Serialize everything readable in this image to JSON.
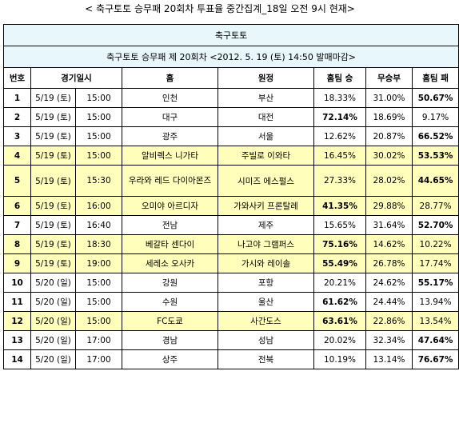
{
  "caption": "< 축구토토 승무패 20회차 투표율 중간집계_18일 오전 9시 현재>",
  "table_title": "축구토토",
  "table_subtitle": "축구토토 승무패 제 20회차 <2012. 5. 19 (토) 14:50 발매마감>",
  "headers": [
    "번호",
    "경기일시",
    "홈",
    "원정",
    "홈팀 승",
    "무승부",
    "홈팀 패"
  ],
  "rows": [
    {
      "no": "1",
      "date": "5/19 (토)",
      "time": "15:00",
      "home": "인천",
      "away": "부산",
      "win": "18.33%",
      "draw": "31.00%",
      "lose": "50.67%",
      "bold": "lose",
      "yellow": false
    },
    {
      "no": "2",
      "date": "5/19 (토)",
      "time": "15:00",
      "home": "대구",
      "away": "대전",
      "win": "72.14%",
      "draw": "18.69%",
      "lose": "9.17%",
      "bold": "win",
      "yellow": false
    },
    {
      "no": "3",
      "date": "5/19 (토)",
      "time": "15:00",
      "home": "광주",
      "away": "서울",
      "win": "12.62%",
      "draw": "20.87%",
      "lose": "66.52%",
      "bold": "lose",
      "yellow": false
    },
    {
      "no": "4",
      "date": "5/19 (토)",
      "time": "15:00",
      "home": "알비렉스 니가타",
      "away": "주빌로 이와타",
      "win": "16.45%",
      "draw": "30.02%",
      "lose": "53.53%",
      "bold": "lose",
      "yellow": true
    },
    {
      "no": "5",
      "date": "5/19 (토)",
      "time": "15:30",
      "home": "우라와 레드 다이아몬즈",
      "away": "시미즈 에스펄스",
      "win": "27.33%",
      "draw": "28.02%",
      "lose": "44.65%",
      "bold": "lose",
      "yellow": true
    },
    {
      "no": "6",
      "date": "5/19 (토)",
      "time": "16:00",
      "home": "오미야 아르디자",
      "away": "가와사키 프론탈레",
      "win": "41.35%",
      "draw": "29.88%",
      "lose": "28.77%",
      "bold": "win",
      "yellow": true
    },
    {
      "no": "7",
      "date": "5/19 (토)",
      "time": "16:40",
      "home": "전남",
      "away": "제주",
      "win": "15.65%",
      "draw": "31.64%",
      "lose": "52.70%",
      "bold": "lose",
      "yellow": false
    },
    {
      "no": "8",
      "date": "5/19 (토)",
      "time": "18:30",
      "home": "베갈타 센다이",
      "away": "나고야 그램퍼스",
      "win": "75.16%",
      "draw": "14.62%",
      "lose": "10.22%",
      "bold": "win",
      "yellow": true
    },
    {
      "no": "9",
      "date": "5/19 (토)",
      "time": "19:00",
      "home": "세레소 오사카",
      "away": "가시와 레이솔",
      "win": "55.49%",
      "draw": "26.78%",
      "lose": "17.74%",
      "bold": "win",
      "yellow": true
    },
    {
      "no": "10",
      "date": "5/20 (일)",
      "time": "15:00",
      "home": "강원",
      "away": "포항",
      "win": "20.21%",
      "draw": "24.62%",
      "lose": "55.17%",
      "bold": "lose",
      "yellow": false
    },
    {
      "no": "11",
      "date": "5/20 (일)",
      "time": "15:00",
      "home": "수원",
      "away": "울산",
      "win": "61.62%",
      "draw": "24.44%",
      "lose": "13.94%",
      "bold": "win",
      "yellow": false
    },
    {
      "no": "12",
      "date": "5/20 (일)",
      "time": "15:00",
      "home": "FC도쿄",
      "away": "사간도스",
      "win": "63.61%",
      "draw": "22.86%",
      "lose": "13.54%",
      "bold": "win",
      "yellow": true
    },
    {
      "no": "13",
      "date": "5/20 (일)",
      "time": "17:00",
      "home": "경남",
      "away": "성남",
      "win": "20.02%",
      "draw": "32.34%",
      "lose": "47.64%",
      "bold": "lose",
      "yellow": false
    },
    {
      "no": "14",
      "date": "5/20 (일)",
      "time": "17:00",
      "home": "상주",
      "away": "전북",
      "win": "10.19%",
      "draw": "13.14%",
      "lose": "76.67%",
      "bold": "lose",
      "yellow": false
    }
  ],
  "colors": {
    "header_bg": "#e7f7fb",
    "highlight_row": "#fffebb",
    "border": "#000000"
  }
}
